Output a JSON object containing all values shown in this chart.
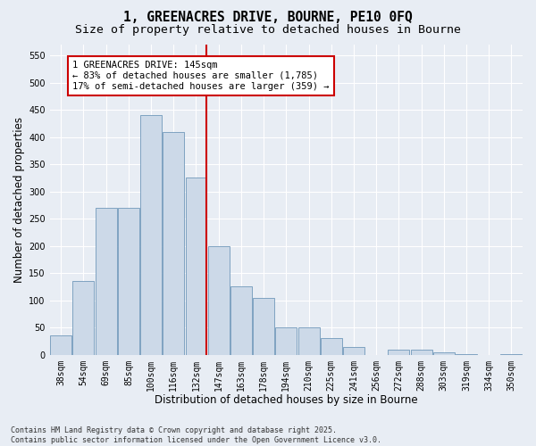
{
  "title_line1": "1, GREENACRES DRIVE, BOURNE, PE10 0FQ",
  "title_line2": "Size of property relative to detached houses in Bourne",
  "xlabel": "Distribution of detached houses by size in Bourne",
  "ylabel": "Number of detached properties",
  "footer_line1": "Contains HM Land Registry data © Crown copyright and database right 2025.",
  "footer_line2": "Contains public sector information licensed under the Open Government Licence v3.0.",
  "annotation_line1": "1 GREENACRES DRIVE: 145sqm",
  "annotation_line2": "← 83% of detached houses are smaller (1,785)",
  "annotation_line3": "17% of semi-detached houses are larger (359) →",
  "property_line_x": 6,
  "bar_color": "#ccd9e8",
  "bar_edge_color": "#7098ba",
  "annotation_box_color": "#ffffff",
  "annotation_box_edge": "#cc0000",
  "vline_color": "#cc0000",
  "bg_color": "#e8edf4",
  "categories": [
    "38sqm",
    "54sqm",
    "69sqm",
    "85sqm",
    "100sqm",
    "116sqm",
    "132sqm",
    "147sqm",
    "163sqm",
    "178sqm",
    "194sqm",
    "210sqm",
    "225sqm",
    "241sqm",
    "256sqm",
    "272sqm",
    "288sqm",
    "303sqm",
    "319sqm",
    "334sqm",
    "350sqm"
  ],
  "bar_heights": [
    35,
    135,
    270,
    270,
    440,
    410,
    325,
    200,
    125,
    105,
    50,
    50,
    30,
    15,
    0,
    10,
    10,
    5,
    2,
    0,
    2
  ],
  "ylim": [
    0,
    570
  ],
  "yticks": [
    0,
    50,
    100,
    150,
    200,
    250,
    300,
    350,
    400,
    450,
    500,
    550
  ],
  "grid_color": "#ffffff",
  "title_fontsize": 10.5,
  "subtitle_fontsize": 9.5,
  "axis_label_fontsize": 8.5,
  "tick_fontsize": 7,
  "annotation_fontsize": 7.5,
  "footer_fontsize": 6
}
